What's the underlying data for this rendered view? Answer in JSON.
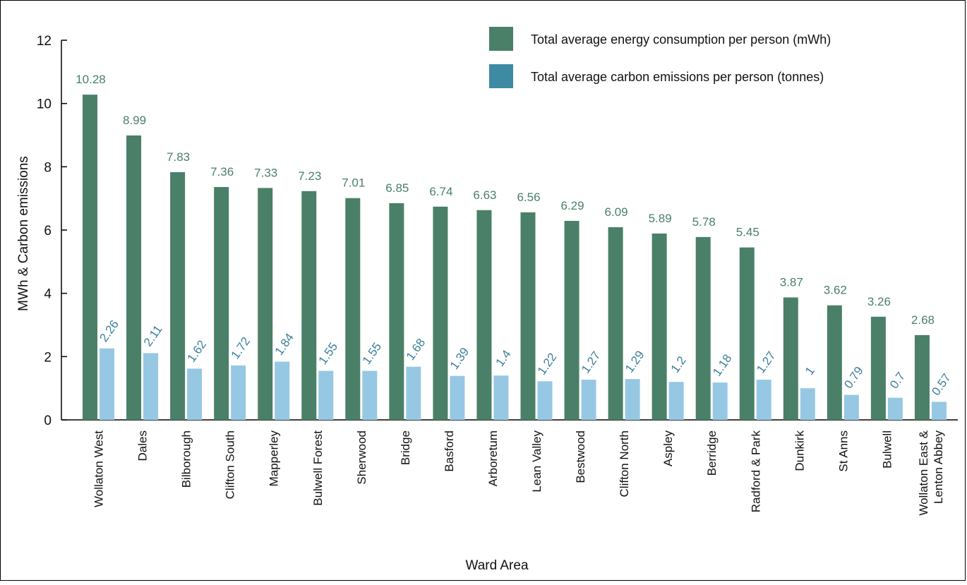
{
  "chart_data": {
    "type": "bar",
    "xlabel": "Ward Area",
    "ylabel": "MWh & Carbon emissions",
    "ylim": [
      0,
      12
    ],
    "yticks": [
      0,
      2,
      4,
      6,
      8,
      10,
      12
    ],
    "grid": false,
    "legend_position": "top-right",
    "categories": [
      [
        "Wollaton West"
      ],
      [
        "Dales"
      ],
      [
        "Bilborough"
      ],
      [
        "Clifton South"
      ],
      [
        "Mapperley"
      ],
      [
        "Bulwell Forest"
      ],
      [
        "Sherwood"
      ],
      [
        "Bridge"
      ],
      [
        "Basford"
      ],
      [
        "Arboretum"
      ],
      [
        "Lean Valley"
      ],
      [
        "Bestwood"
      ],
      [
        "Clifton North"
      ],
      [
        "Aspley"
      ],
      [
        "Berridge"
      ],
      [
        "Radford & Park"
      ],
      [
        "Dunkirk"
      ],
      [
        "St Anns"
      ],
      [
        "Bulwell"
      ],
      [
        "Wollaton East &",
        "Lenton Abbey"
      ]
    ],
    "series": [
      {
        "name": "Total average energy consumption per person (mWh)",
        "color": "#4a8068",
        "label_color": "#4a8068",
        "values": [
          10.28,
          8.99,
          7.83,
          7.36,
          7.33,
          7.23,
          7.01,
          6.85,
          6.74,
          6.63,
          6.56,
          6.29,
          6.09,
          5.89,
          5.78,
          5.45,
          3.87,
          3.62,
          3.26,
          2.68
        ],
        "labels": [
          "10.28",
          "8.99",
          "7.83",
          "7.36",
          "7.33",
          "7.23",
          "7.01",
          "6.85",
          "6.74",
          "6.63",
          "6.56",
          "6.29",
          "6.09",
          "5.89",
          "5.78",
          "5.45",
          "3.87",
          "3.62",
          "3.26",
          "2.68"
        ]
      },
      {
        "name": "Total average carbon emissions per person (tonnes)",
        "color": "#96c8e3",
        "label_color": "#3d7f9c",
        "legend_color": "#3e8aa2",
        "values": [
          2.26,
          2.11,
          1.62,
          1.72,
          1.84,
          1.55,
          1.55,
          1.68,
          1.39,
          1.4,
          1.22,
          1.27,
          1.29,
          1.2,
          1.18,
          1.27,
          1,
          0.79,
          0.7,
          0.57
        ],
        "labels": [
          "2.26",
          "2.11",
          "1.62",
          "1.72",
          "1.84",
          "1.55",
          "1.55",
          "1.68",
          "1.39",
          "1.4",
          "1.22",
          "1.27",
          "1.29",
          "1.2",
          "1.18",
          "1.27",
          "1",
          "0.79",
          "0.7",
          "0.57"
        ]
      }
    ]
  }
}
